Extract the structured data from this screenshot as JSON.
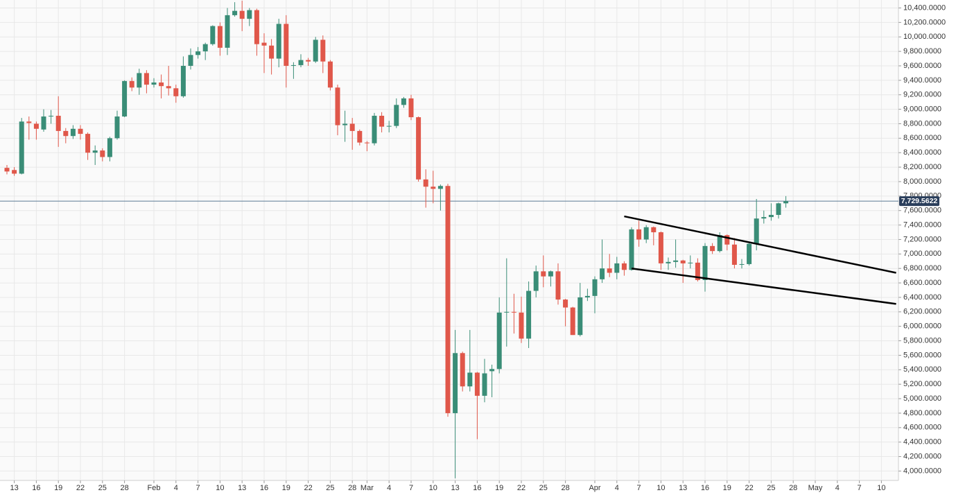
{
  "chart_data": {
    "type": "candlestick",
    "categories": [
      "Jan 12",
      "Jan 13",
      "Jan 14",
      "Jan 15",
      "Jan 16",
      "Jan 17",
      "Jan 18",
      "Jan 19",
      "Jan 20",
      "Jan 21",
      "Jan 22",
      "Jan 23",
      "Jan 24",
      "Jan 25",
      "Jan 26",
      "Jan 27",
      "Jan 28",
      "Jan 29",
      "Jan 30",
      "Jan 31",
      "Feb 1",
      "Feb 2",
      "Feb 3",
      "Feb 4",
      "Feb 5",
      "Feb 6",
      "Feb 7",
      "Feb 8",
      "Feb 9",
      "Feb 10",
      "Feb 11",
      "Feb 12",
      "Feb 13",
      "Feb 14",
      "Feb 15",
      "Feb 16",
      "Feb 17",
      "Feb 18",
      "Feb 19",
      "Feb 20",
      "Feb 21",
      "Feb 22",
      "Feb 23",
      "Feb 24",
      "Feb 25",
      "Feb 26",
      "Feb 27",
      "Feb 28",
      "Feb 29",
      "Mar 1",
      "Mar 2",
      "Mar 3",
      "Mar 4",
      "Mar 5",
      "Mar 6",
      "Mar 7",
      "Mar 8",
      "Mar 9",
      "Mar 10",
      "Mar 11",
      "Mar 12",
      "Mar 13",
      "Mar 14",
      "Mar 15",
      "Mar 16",
      "Mar 17",
      "Mar 18",
      "Mar 19",
      "Mar 20",
      "Mar 21",
      "Mar 22",
      "Mar 23",
      "Mar 24",
      "Mar 25",
      "Mar 26",
      "Mar 27",
      "Mar 28",
      "Mar 29",
      "Mar 30",
      "Mar 31",
      "Apr 1",
      "Apr 2",
      "Apr 3",
      "Apr 4",
      "Apr 5",
      "Apr 6",
      "Apr 7",
      "Apr 8",
      "Apr 9",
      "Apr 10",
      "Apr 11",
      "Apr 12",
      "Apr 13",
      "Apr 14",
      "Apr 15",
      "Apr 16",
      "Apr 17",
      "Apr 18",
      "Apr 19",
      "Apr 20",
      "Apr 21",
      "Apr 22",
      "Apr 23",
      "Apr 24",
      "Apr 25",
      "Apr 26",
      "Apr 27"
    ],
    "open": [
      8190,
      8160,
      8110,
      8830,
      8800,
      8720,
      8900,
      8910,
      8700,
      8630,
      8730,
      8660,
      8400,
      8430,
      8340,
      8600,
      8900,
      9390,
      9300,
      9500,
      9340,
      9370,
      9320,
      9290,
      9180,
      9600,
      9750,
      9800,
      9900,
      10150,
      9850,
      10300,
      10360,
      10250,
      10370,
      9920,
      9880,
      9700,
      10180,
      9600,
      9610,
      9680,
      9660,
      9960,
      9660,
      9300,
      8780,
      8800,
      8700,
      8540,
      8530,
      8910,
      8760,
      8770,
      9060,
      9150,
      8890,
      8030,
      7930,
      7900,
      7940,
      4800,
      5630,
      5170,
      5360,
      5040,
      5380,
      5410,
      6190,
      6200,
      6190,
      5830,
      6490,
      6760,
      6690,
      6760,
      6370,
      6260,
      5880,
      6400,
      6420,
      6650,
      6800,
      6740,
      6870,
      6780,
      7340,
      7200,
      7370,
      7300,
      6870,
      6890,
      6910,
      6870,
      6880,
      6640,
      7110,
      7040,
      7260,
      7130,
      6850,
      6860,
      7140,
      7490,
      7510,
      7540,
      7700
    ],
    "high": [
      8230,
      8200,
      8880,
      8900,
      8830,
      9000,
      8990,
      9180,
      8740,
      8780,
      8780,
      8680,
      8500,
      8460,
      8620,
      8980,
      9400,
      9440,
      9560,
      9540,
      9430,
      9480,
      9600,
      9340,
      9730,
      9840,
      9860,
      9920,
      10160,
      10200,
      10400,
      10480,
      10500,
      10400,
      10390,
      10050,
      9970,
      10250,
      10300,
      9650,
      9760,
      9710,
      10000,
      10020,
      9680,
      9340,
      8980,
      8880,
      8720,
      8560,
      8950,
      8960,
      8840,
      9150,
      9170,
      9200,
      8900,
      8170,
      8150,
      7960,
      7970,
      5950,
      5650,
      5950,
      5370,
      5550,
      5470,
      6400,
      6940,
      6450,
      6410,
      6620,
      6840,
      6980,
      6770,
      6870,
      6380,
      6270,
      6600,
      6520,
      6690,
      7200,
      7000,
      6960,
      6900,
      7370,
      7460,
      7400,
      7380,
      7310,
      6950,
      7200,
      6920,
      6980,
      6940,
      7150,
      7150,
      7300,
      7270,
      7220,
      6930,
      7160,
      7760,
      7600,
      7700,
      7710,
      7800
    ],
    "low": [
      8100,
      8080,
      8100,
      8580,
      8580,
      8690,
      8800,
      8480,
      8530,
      8590,
      8580,
      8300,
      8230,
      8280,
      8280,
      8580,
      8890,
      9250,
      9200,
      9220,
      9300,
      9150,
      9190,
      9090,
      9160,
      9550,
      9700,
      9680,
      9880,
      9740,
      9750,
      10280,
      10080,
      10150,
      9740,
      9500,
      9480,
      9580,
      9300,
      9420,
      9580,
      9600,
      9640,
      9500,
      9260,
      8640,
      8550,
      8440,
      8500,
      8420,
      8500,
      8680,
      8680,
      8740,
      9020,
      8850,
      8000,
      7640,
      7700,
      7600,
      4750,
      3900,
      5100,
      5100,
      4440,
      4950,
      5020,
      5350,
      5720,
      5900,
      5770,
      5700,
      6400,
      6540,
      6550,
      6300,
      6000,
      5880,
      5860,
      6350,
      6180,
      6600,
      6680,
      6650,
      6700,
      6770,
      7100,
      7150,
      7120,
      6780,
      6780,
      6810,
      6600,
      6800,
      6620,
      6480,
      7000,
      7020,
      7050,
      6800,
      6800,
      6840,
      7050,
      7420,
      7460,
      7490,
      7640
    ],
    "close": [
      8140,
      8110,
      8830,
      8810,
      8730,
      8900,
      8910,
      8700,
      8630,
      8730,
      8660,
      8400,
      8430,
      8340,
      8600,
      8900,
      9390,
      9300,
      9500,
      9340,
      9370,
      9320,
      9290,
      9180,
      9600,
      9750,
      9800,
      9900,
      10150,
      9850,
      10300,
      10360,
      10250,
      10370,
      9900,
      9880,
      9700,
      10180,
      9600,
      9610,
      9680,
      9660,
      9960,
      9660,
      9300,
      8780,
      8800,
      8700,
      8540,
      8530,
      8910,
      8760,
      8770,
      9060,
      9150,
      8890,
      8030,
      7930,
      7900,
      7940,
      4800,
      5630,
      5170,
      5360,
      5040,
      5350,
      5410,
      6190,
      6200,
      6190,
      5830,
      6490,
      6760,
      6690,
      6760,
      6370,
      6260,
      5880,
      6400,
      6420,
      6650,
      6800,
      6740,
      6870,
      6780,
      7340,
      7200,
      7370,
      7300,
      6870,
      6890,
      6910,
      6870,
      6880,
      6640,
      7110,
      7040,
      7260,
      7130,
      6850,
      6860,
      7140,
      7490,
      7510,
      7540,
      7700,
      7730
    ],
    "up_color": "#3a8d77",
    "down_color": "#e0574a",
    "ylim": [
      3870,
      10510
    ],
    "yticks": [
      {
        "value": 4000,
        "label": "4,000.0000"
      },
      {
        "value": 4200,
        "label": "4,200.0000"
      },
      {
        "value": 4400,
        "label": "4,400.0000"
      },
      {
        "value": 4600,
        "label": "4,600.0000"
      },
      {
        "value": 4800,
        "label": "4,800.0000"
      },
      {
        "value": 5000,
        "label": "5,000.0000"
      },
      {
        "value": 5200,
        "label": "5,200.0000"
      },
      {
        "value": 5400,
        "label": "5,400.0000"
      },
      {
        "value": 5600,
        "label": "5,600.0000"
      },
      {
        "value": 5800,
        "label": "5,800.0000"
      },
      {
        "value": 6000,
        "label": "6,000.0000"
      },
      {
        "value": 6200,
        "label": "6,200.0000"
      },
      {
        "value": 6400,
        "label": "6,400.0000"
      },
      {
        "value": 6600,
        "label": "6,600.0000"
      },
      {
        "value": 6800,
        "label": "6,800.0000"
      },
      {
        "value": 7000,
        "label": "7,000.0000"
      },
      {
        "value": 7200,
        "label": "7,200.0000"
      },
      {
        "value": 7400,
        "label": "7,400.0000"
      },
      {
        "value": 7600,
        "label": "7,600.0000"
      },
      {
        "value": 7800,
        "label": "7,800.0000"
      },
      {
        "value": 8000,
        "label": "8,000.0000"
      },
      {
        "value": 8200,
        "label": "8,200.0000"
      },
      {
        "value": 8400,
        "label": "8,400.0000"
      },
      {
        "value": 8600,
        "label": "8,600.0000"
      },
      {
        "value": 8800,
        "label": "8,800.0000"
      },
      {
        "value": 9000,
        "label": "9,000.0000"
      },
      {
        "value": 9200,
        "label": "9,200.0000"
      },
      {
        "value": 9400,
        "label": "9,400.0000"
      },
      {
        "value": 9600,
        "label": "9,600.0000"
      },
      {
        "value": 9800,
        "label": "9,800.0000"
      },
      {
        "value": 10000,
        "label": "10,000.0000"
      },
      {
        "value": 10200,
        "label": "10,200.0000"
      },
      {
        "value": 10400,
        "label": "10,400.0000"
      }
    ],
    "xticks": [
      {
        "value": "Jan 13",
        "label": "13"
      },
      {
        "value": "Jan 16",
        "label": "16"
      },
      {
        "value": "Jan 19",
        "label": "19"
      },
      {
        "value": "Jan 22",
        "label": "22"
      },
      {
        "value": "Jan 25",
        "label": "25"
      },
      {
        "value": "Jan 28",
        "label": "28"
      },
      {
        "value": "Feb 1",
        "label": "Feb"
      },
      {
        "value": "Feb 4",
        "label": "4"
      },
      {
        "value": "Feb 7",
        "label": "7"
      },
      {
        "value": "Feb 10",
        "label": "10"
      },
      {
        "value": "Feb 13",
        "label": "13"
      },
      {
        "value": "Feb 16",
        "label": "16"
      },
      {
        "value": "Feb 19",
        "label": "19"
      },
      {
        "value": "Feb 22",
        "label": "22"
      },
      {
        "value": "Feb 25",
        "label": "25"
      },
      {
        "value": "Feb 28",
        "label": "28"
      },
      {
        "value": "Mar 1",
        "label": "Mar"
      },
      {
        "value": "Mar 4",
        "label": "4"
      },
      {
        "value": "Mar 7",
        "label": "7"
      },
      {
        "value": "Mar 10",
        "label": "10"
      },
      {
        "value": "Mar 13",
        "label": "13"
      },
      {
        "value": "Mar 16",
        "label": "16"
      },
      {
        "value": "Mar 19",
        "label": "19"
      },
      {
        "value": "Mar 22",
        "label": "22"
      },
      {
        "value": "Mar 25",
        "label": "25"
      },
      {
        "value": "Mar 28",
        "label": "28"
      },
      {
        "value": "Apr 1",
        "label": "Apr"
      },
      {
        "value": "Apr 4",
        "label": "4"
      },
      {
        "value": "Apr 7",
        "label": "7"
      },
      {
        "value": "Apr 10",
        "label": "10"
      },
      {
        "value": "Apr 13",
        "label": "13"
      },
      {
        "value": "Apr 16",
        "label": "16"
      },
      {
        "value": "Apr 19",
        "label": "19"
      },
      {
        "value": "Apr 22",
        "label": "22"
      },
      {
        "value": "Apr 25",
        "label": "25"
      },
      {
        "value": "Apr 28",
        "label": "28"
      },
      {
        "value": "May 1",
        "label": "May"
      },
      {
        "value": "May 4",
        "label": "4"
      },
      {
        "value": "May 7",
        "label": "7"
      },
      {
        "value": "May 10",
        "label": "10"
      }
    ],
    "grid": true,
    "last_price": {
      "value": 7729.5622,
      "label": "7,729.5622"
    },
    "trendlines": [
      {
        "x": [
          "Apr 5",
          "May 12"
        ],
        "values": [
          7520,
          6740
        ]
      },
      {
        "x": [
          "Apr 6",
          "May 12"
        ],
        "values": [
          6800,
          6310
        ]
      }
    ]
  }
}
